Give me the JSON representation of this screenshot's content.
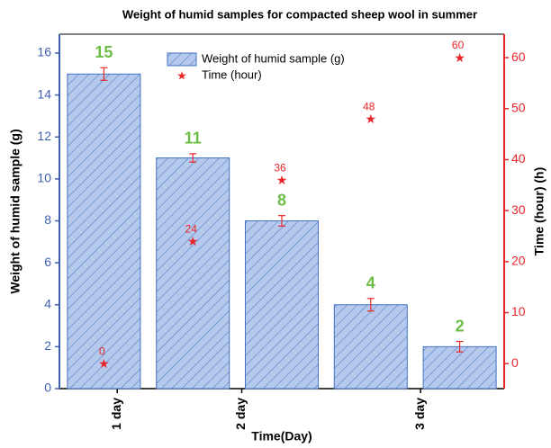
{
  "chart_data": {
    "type": "bar_scatter",
    "title": "Weight of humid samples for compacted sheep wool in summer",
    "xlabel": "Time(Day)",
    "ylabel": "Weight of humid sample (g)",
    "y2label": "Time (hour) (h)",
    "x": [
      1,
      2,
      3,
      4,
      5
    ],
    "xlim": [
      0.5,
      5.5
    ],
    "xticks": [
      {
        "value": 1.15,
        "label": "1 day"
      },
      {
        "value": 2.55,
        "label": "2 day"
      },
      {
        "value": 4.56,
        "label": "3 day"
      }
    ],
    "ylim": [
      0,
      16.9
    ],
    "yticks": [
      0,
      2,
      4,
      6,
      8,
      10,
      12,
      14,
      16
    ],
    "y2lim": [
      -4.9,
      64.6
    ],
    "y2ticks": [
      0,
      10,
      20,
      30,
      40,
      50,
      60
    ],
    "legend": "top",
    "series": [
      {
        "name": "Weight of humid sample (g)",
        "type": "bar",
        "color": "#4472c4",
        "values": [
          15,
          11,
          8,
          4,
          2
        ],
        "errors": [
          0.3,
          0.2,
          0.25,
          0.3,
          0.25
        ]
      },
      {
        "name": "Time (hour)",
        "type": "scatter",
        "axis": "y2",
        "color": "#e8262a",
        "values": [
          0,
          24,
          36,
          48,
          60
        ]
      }
    ]
  }
}
